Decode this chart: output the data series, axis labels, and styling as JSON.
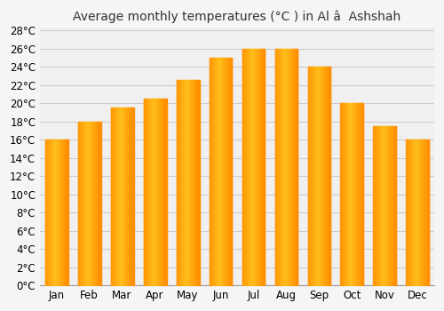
{
  "title": "Average monthly temperatures (°C ) in Al â  Ashshah",
  "months": [
    "Jan",
    "Feb",
    "Mar",
    "Apr",
    "May",
    "Jun",
    "Jul",
    "Aug",
    "Sep",
    "Oct",
    "Nov",
    "Dec"
  ],
  "values": [
    16.0,
    18.0,
    19.5,
    20.5,
    22.5,
    25.0,
    26.0,
    26.0,
    24.0,
    20.0,
    17.5,
    16.0
  ],
  "bar_color": "#FFA500",
  "bar_color_light": "#FFD580",
  "ylim": [
    0,
    28
  ],
  "ytick_step": 2,
  "background_color": "#f5f5f5",
  "plot_bg_color": "#f0f0f0",
  "grid_color": "#cccccc",
  "title_fontsize": 10,
  "tick_fontsize": 8.5
}
